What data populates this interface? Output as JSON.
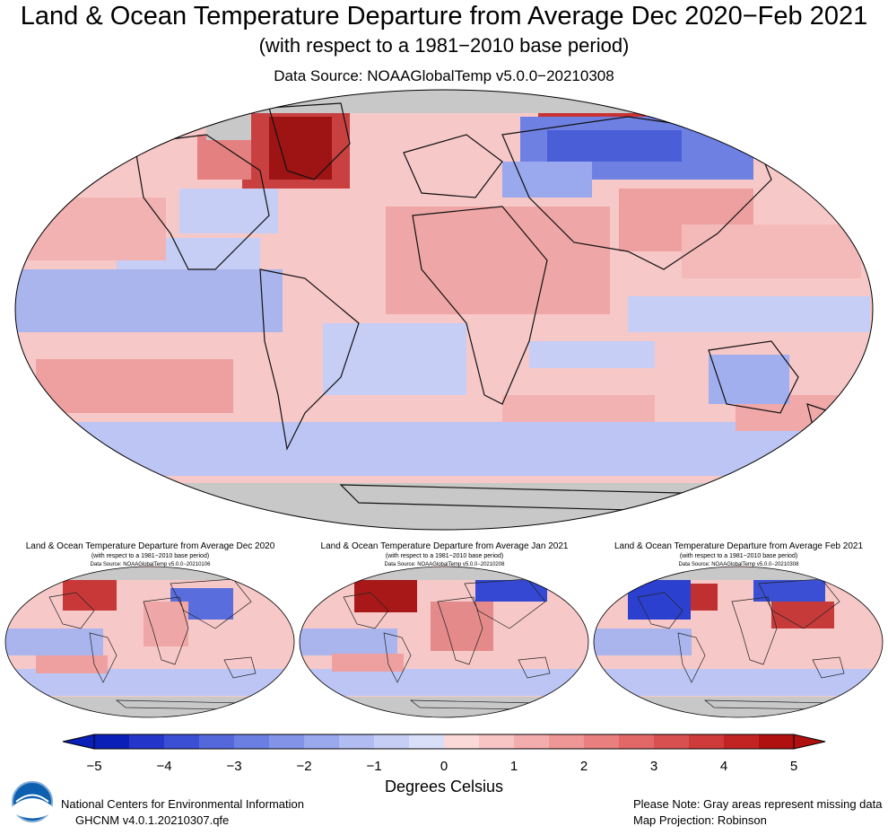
{
  "main_map": {
    "title": "Land & Ocean Temperature Departure from Average Dec 2020−Feb 2021",
    "subtitle": "(with respect to a 1981−2010 base period)",
    "source": "Data Source: NOAAGlobalTemp v5.0.0−20210308"
  },
  "panels": [
    {
      "title": "Land & Ocean Temperature Departure from Average Dec 2020",
      "subtitle": "(with respect to a 1981−2010 base period)",
      "source": "Data Source: NOAAGlobalTemp v5.0.0−20210106"
    },
    {
      "title": "Land & Ocean Temperature Departure from Average Jan 2021",
      "subtitle": "(with respect to a 1981−2010 base period)",
      "source": "Data Source: NOAAGlobalTemp v5.0.0−20210208"
    },
    {
      "title": "Land & Ocean Temperature Departure from Average Feb 2021",
      "subtitle": "(with respect to a 1981−2010 base period)",
      "source": "Data Source: NOAAGlobalTemp v5.0.0−20210308"
    }
  ],
  "colorbar": {
    "ticks": [
      "−5",
      "−4",
      "−3",
      "−2",
      "−1",
      "0",
      "1",
      "2",
      "3",
      "4",
      "5"
    ],
    "title": "Degrees Celsius",
    "colors": [
      "#0a1fb8",
      "#2436c9",
      "#3b4fd4",
      "#5468dc",
      "#6b7fe2",
      "#8394e8",
      "#9aa8ee",
      "#b1bcf2",
      "#c6cef6",
      "#d9def9",
      "#fbd9d9",
      "#f8c4c4",
      "#f4adad",
      "#ef9696",
      "#e97f7f",
      "#e26868",
      "#d95050",
      "#cf3a3a",
      "#c22424",
      "#b01010"
    ]
  },
  "footer": {
    "agency": "National Centers for Environmental Information",
    "dataset": "GHCNM v4.0.1.20210307.qfe",
    "note": "Please Note: Gray areas represent missing data",
    "projection": "Map Projection: Robinson",
    "logo_text": "NOAA"
  }
}
